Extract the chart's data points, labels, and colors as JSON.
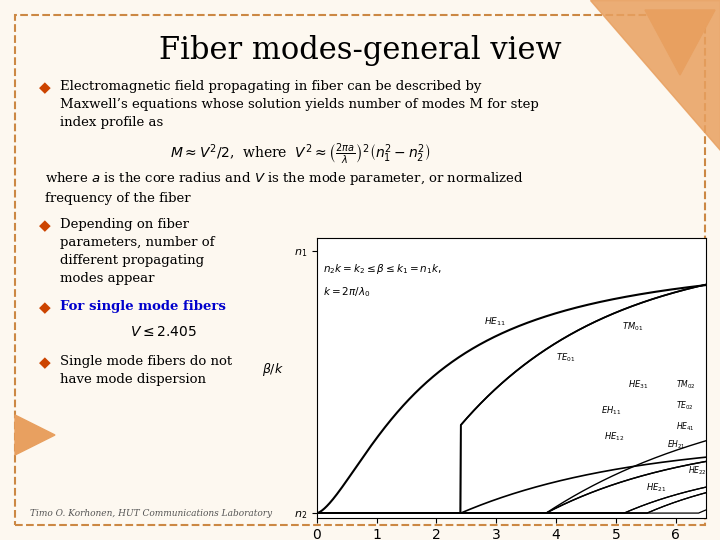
{
  "title": "Fiber modes-general view",
  "title_fontsize": 22,
  "background_color": "#fdf8f0",
  "border_color": "#cc8844",
  "bullet_color": "#cc4400",
  "bullet1": "Electromagnetic field propagating in fiber can be described by\nMaxwell’s equations whose solution yields number of modes M for step\nindex profile as",
  "formula1": "$M \\approx V^2/2$,  where  $V^2 \\approx \\left(\\frac{2\\pi a}{\\lambda}\\right)^2\\left(n_1^2 - n_2^2\\right)$",
  "text_freq": "where $a$ is the core radius and $V$ is the mode parameter, or normalized\nfrequency of the fiber",
  "bullet2": "Depending on fiber\nparameters, number of\ndifferent propagating\nmodes appear",
  "bullet3": "For single mode fibers",
  "bullet3_color": "#0000cc",
  "formula2": "$V \\leq 2.405$",
  "bullet4": "Single mode fibers do not\nhave mode dispersion",
  "footer": "Timo O. Korhonen, HUT Communications Laboratory",
  "triangle_color": "#e8a060",
  "slide_bg": "#fdf8f0",
  "text_color": "#000000"
}
